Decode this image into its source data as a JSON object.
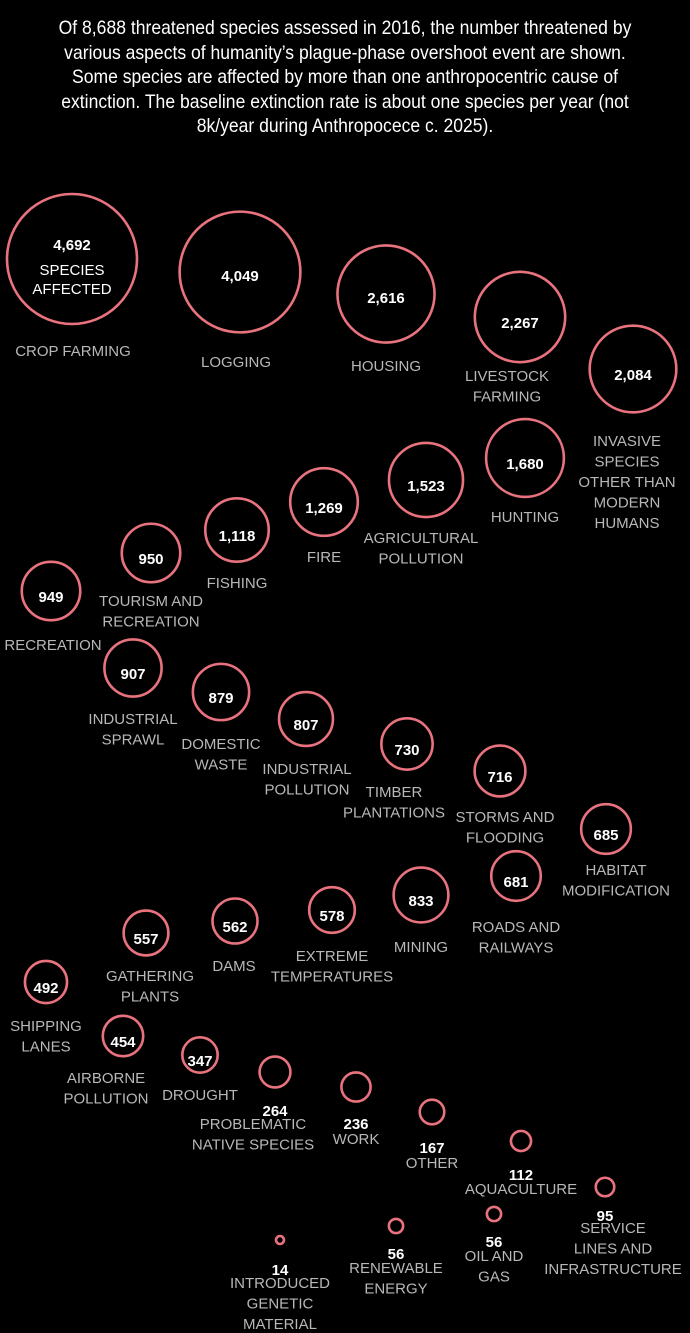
{
  "intro": "Of 8,688 threatened species assessed in 2016, the number threatened by various aspects of humanity’s plague-phase overshoot event are shown. Some species are affected by more than one anthropocentric cause of extinction. The baseline extinction rate is about one species per year (not 8k/year during Anthropocece c. 2025).",
  "colors": {
    "background": "#000000",
    "bubble_stroke": "#e8737f",
    "value_text": "#ffffff",
    "label_text": "#b8b8b8"
  },
  "chart_data": {
    "type": "bubble",
    "size_label_lines": [
      "SPECIES",
      "AFFECTED"
    ],
    "items": [
      {
        "value_label": "4,692",
        "value": 4692,
        "label_lines": [
          "CROP FARMING"
        ]
      },
      {
        "value_label": "4,049",
        "value": 4049,
        "label_lines": [
          "LOGGING"
        ]
      },
      {
        "value_label": "2,616",
        "value": 2616,
        "label_lines": [
          "HOUSING"
        ]
      },
      {
        "value_label": "2,267",
        "value": 2267,
        "label_lines": [
          "LIVESTOCK",
          "FARMING"
        ]
      },
      {
        "value_label": "2,084",
        "value": 2084,
        "label_lines": [
          "INVASIVE",
          "SPECIES",
          "OTHER THAN",
          "MODERN",
          "HUMANS"
        ]
      },
      {
        "value_label": "1,680",
        "value": 1680,
        "label_lines": [
          "HUNTING"
        ]
      },
      {
        "value_label": "1,523",
        "value": 1523,
        "label_lines": [
          "AGRICULTURAL",
          "POLLUTION"
        ]
      },
      {
        "value_label": "1,269",
        "value": 1269,
        "label_lines": [
          "FIRE"
        ]
      },
      {
        "value_label": "1,118",
        "value": 1118,
        "label_lines": [
          "FISHING"
        ]
      },
      {
        "value_label": "950",
        "value": 950,
        "label_lines": [
          "TOURISM AND",
          "RECREATION"
        ]
      },
      {
        "value_label": "949",
        "value": 949,
        "label_lines": [
          "RECREATION"
        ]
      },
      {
        "value_label": "907",
        "value": 907,
        "label_lines": [
          "INDUSTRIAL",
          "SPRAWL"
        ]
      },
      {
        "value_label": "879",
        "value": 879,
        "label_lines": [
          "DOMESTIC",
          "WASTE"
        ]
      },
      {
        "value_label": "807",
        "value": 807,
        "label_lines": [
          "INDUSTRIAL",
          "POLLUTION"
        ]
      },
      {
        "value_label": "730",
        "value": 730,
        "label_lines": [
          "TIMBER",
          "PLANTATIONS"
        ]
      },
      {
        "value_label": "716",
        "value": 716,
        "label_lines": [
          "STORMS AND",
          "FLOODING"
        ]
      },
      {
        "value_label": "685",
        "value": 685,
        "label_lines": [
          "HABITAT",
          "MODIFICATION"
        ]
      },
      {
        "value_label": "681",
        "value": 681,
        "label_lines": [
          "ROADS AND",
          "RAILWAYS"
        ]
      },
      {
        "value_label": "833",
        "value": 833,
        "label_lines": [
          "MINING"
        ]
      },
      {
        "value_label": "578",
        "value": 578,
        "label_lines": [
          "EXTREME",
          "TEMPERATURES"
        ]
      },
      {
        "value_label": "562",
        "value": 562,
        "label_lines": [
          "DAMS"
        ]
      },
      {
        "value_label": "557",
        "value": 557,
        "label_lines": [
          "GATHERING",
          "PLANTS"
        ]
      },
      {
        "value_label": "492",
        "value": 492,
        "label_lines": [
          "SHIPPING",
          "LANES"
        ]
      },
      {
        "value_label": "454",
        "value": 454,
        "label_lines": [
          "AIRBORNE",
          "POLLUTION"
        ]
      },
      {
        "value_label": "347",
        "value": 347,
        "label_lines": [
          "DROUGHT"
        ]
      },
      {
        "value_label": "264",
        "value": 264,
        "label_lines": [
          "PROBLEMATIC",
          "NATIVE SPECIES"
        ]
      },
      {
        "value_label": "236",
        "value": 236,
        "label_lines": [
          "WORK"
        ]
      },
      {
        "value_label": "167",
        "value": 167,
        "label_lines": [
          "OTHER"
        ]
      },
      {
        "value_label": "112",
        "value": 112,
        "label_lines": [
          "AQUACULTURE"
        ]
      },
      {
        "value_label": "95",
        "value": 95,
        "label_lines": [
          "SERVICE",
          "LINES AND",
          "INFRASTRUCTURE"
        ]
      },
      {
        "value_label": "56",
        "value": 56,
        "label_lines": [
          "OIL AND",
          "GAS"
        ]
      },
      {
        "value_label": "56",
        "value": 56,
        "label_lines": [
          "RENEWABLE",
          "ENERGY"
        ]
      },
      {
        "value_label": "14",
        "value": 14,
        "label_lines": [
          "INTRODUCED",
          "GENETIC",
          "MATERIAL"
        ]
      }
    ]
  }
}
